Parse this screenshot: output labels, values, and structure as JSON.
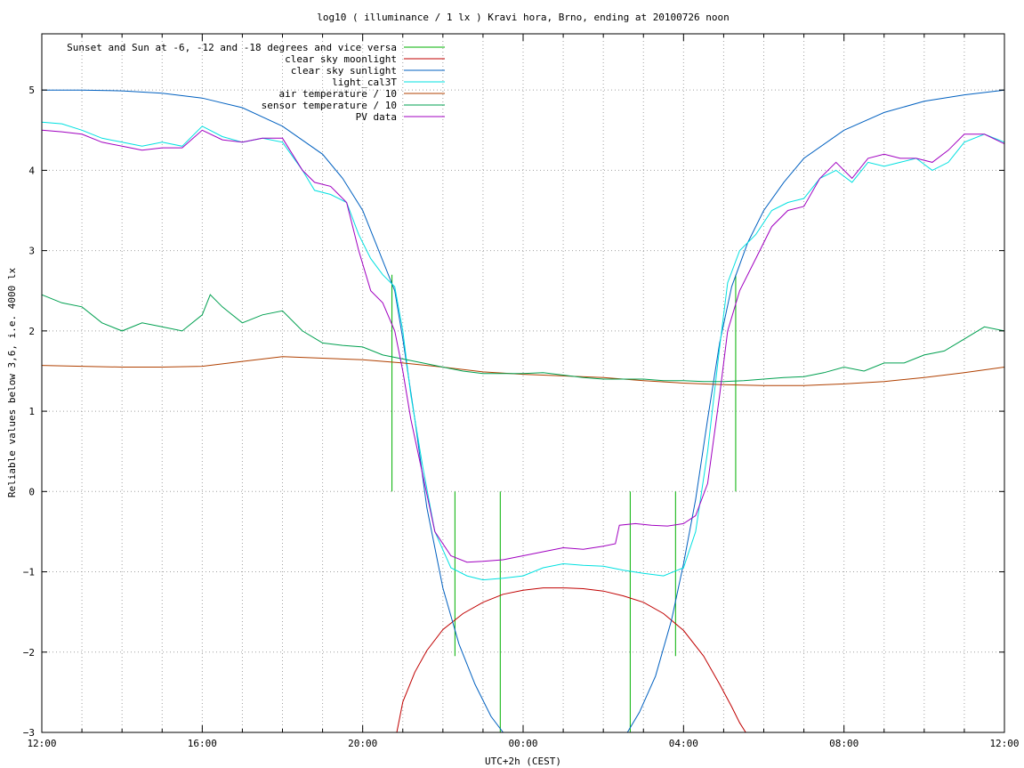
{
  "chart_data": {
    "type": "line",
    "title": "log10 ( illuminance / 1 lx ) Kravi hora, Brno, ending at 20100726 noon",
    "xlabel": "UTC+2h (CEST)",
    "ylabel": "Reliable values below 3,6, i.e. 4000 lx",
    "xlim": [
      12,
      36
    ],
    "ylim": [
      -3,
      5.7
    ],
    "x_ticks": [
      {
        "x": 12,
        "label": "12:00"
      },
      {
        "x": 16,
        "label": "16:00"
      },
      {
        "x": 20,
        "label": "20:00"
      },
      {
        "x": 24,
        "label": "00:00"
      },
      {
        "x": 28,
        "label": "04:00"
      },
      {
        "x": 32,
        "label": "08:00"
      },
      {
        "x": 36,
        "label": "12:00"
      }
    ],
    "y_ticks": [
      {
        "y": -3,
        "label": "−3"
      },
      {
        "y": -2,
        "label": "−2"
      },
      {
        "y": -1,
        "label": "−1"
      },
      {
        "y": 0,
        "label": "0"
      },
      {
        "y": 1,
        "label": "1"
      },
      {
        "y": 2,
        "label": "2"
      },
      {
        "y": 3,
        "label": "3"
      },
      {
        "y": 4,
        "label": "4"
      },
      {
        "y": 5,
        "label": "5"
      }
    ],
    "grid": true,
    "legend_position": "top-left",
    "series": [
      {
        "name": "Sunset and Sun at -6, -12 and -18 degrees and vice versa",
        "color": "#00b000",
        "style": "impulses",
        "impulses": [
          [
            20.73,
            2.7
          ],
          [
            22.3,
            -2.05
          ],
          [
            23.43,
            -3
          ],
          [
            26.67,
            -3
          ],
          [
            27.8,
            -2.05
          ],
          [
            29.3,
            2.7
          ]
        ]
      },
      {
        "name": "clear sky moonlight",
        "color": "#c00000",
        "x": [
          20.85,
          21.0,
          21.3,
          21.6,
          22.0,
          22.5,
          23.0,
          23.5,
          24.0,
          24.5,
          25.0,
          25.5,
          26.0,
          26.5,
          27.0,
          27.5,
          28.0,
          28.5,
          28.9,
          29.2,
          29.4,
          29.55
        ],
        "y": [
          -3.0,
          -2.62,
          -2.25,
          -1.98,
          -1.72,
          -1.52,
          -1.38,
          -1.28,
          -1.23,
          -1.2,
          -1.2,
          -1.21,
          -1.24,
          -1.3,
          -1.38,
          -1.52,
          -1.73,
          -2.05,
          -2.4,
          -2.68,
          -2.88,
          -3.0
        ]
      },
      {
        "name": "clear sky sunlight",
        "color": "#0060c0",
        "x": [
          12,
          13,
          14,
          15,
          16,
          17,
          18,
          19,
          19.5,
          20,
          20.4,
          20.8,
          21.0,
          21.3,
          21.6,
          22.0,
          22.4,
          22.8,
          23.2,
          23.5,
          26.6,
          26.9,
          27.3,
          27.7,
          28.0,
          28.3,
          28.6,
          28.9,
          29.2,
          29.6,
          30.0,
          30.5,
          31.0,
          32.0,
          33.0,
          34.0,
          35.0,
          36.0
        ],
        "y": [
          5.0,
          5.0,
          4.99,
          4.96,
          4.9,
          4.78,
          4.55,
          4.2,
          3.9,
          3.5,
          3.0,
          2.5,
          1.9,
          0.9,
          -0.2,
          -1.2,
          -1.9,
          -2.4,
          -2.8,
          -3.0,
          -3.0,
          -2.75,
          -2.3,
          -1.6,
          -0.9,
          -0.1,
          0.9,
          1.85,
          2.55,
          3.1,
          3.5,
          3.85,
          4.15,
          4.5,
          4.72,
          4.86,
          4.94,
          5.0
        ]
      },
      {
        "name": "light_cal3T",
        "color": "#00e0e0",
        "x": [
          12,
          12.5,
          13,
          13.5,
          14,
          14.5,
          15,
          15.5,
          16,
          16.5,
          17,
          17.5,
          18,
          18.5,
          18.8,
          19.2,
          19.6,
          19.9,
          20.2,
          20.5,
          20.8,
          21.0,
          21.2,
          21.5,
          21.8,
          22.2,
          22.6,
          23.0,
          23.5,
          24.0,
          24.5,
          25.0,
          25.5,
          26.0,
          26.5,
          27.0,
          27.5,
          28.0,
          28.3,
          28.6,
          28.9,
          29.1,
          29.4,
          29.8,
          30.2,
          30.6,
          31.0,
          31.4,
          31.8,
          32.2,
          32.6,
          33.0,
          33.4,
          33.8,
          34.2,
          34.6,
          35.0,
          35.5,
          36.0
        ],
        "y": [
          4.6,
          4.58,
          4.5,
          4.4,
          4.35,
          4.3,
          4.35,
          4.3,
          4.55,
          4.42,
          4.35,
          4.4,
          4.35,
          4.0,
          3.75,
          3.7,
          3.6,
          3.2,
          2.9,
          2.7,
          2.55,
          2.0,
          1.2,
          0.3,
          -0.5,
          -0.95,
          -1.05,
          -1.1,
          -1.08,
          -1.05,
          -0.95,
          -0.9,
          -0.92,
          -0.93,
          -0.98,
          -1.02,
          -1.05,
          -0.95,
          -0.5,
          0.5,
          1.8,
          2.6,
          3.0,
          3.2,
          3.5,
          3.6,
          3.65,
          3.9,
          4.0,
          3.85,
          4.1,
          4.05,
          4.1,
          4.15,
          4.0,
          4.1,
          4.35,
          4.45,
          4.35
        ]
      },
      {
        "name": "air temperature / 10",
        "color": "#b04000",
        "x": [
          12,
          13,
          14,
          15,
          16,
          17,
          18,
          19,
          20,
          21,
          22,
          23,
          24,
          25,
          26,
          27,
          28,
          29,
          30,
          31,
          32,
          33,
          34,
          35,
          36
        ],
        "y": [
          1.57,
          1.56,
          1.55,
          1.55,
          1.56,
          1.62,
          1.68,
          1.66,
          1.64,
          1.6,
          1.55,
          1.49,
          1.46,
          1.44,
          1.42,
          1.38,
          1.35,
          1.33,
          1.32,
          1.32,
          1.34,
          1.37,
          1.42,
          1.48,
          1.55
        ]
      },
      {
        "name": "sensor temperature / 10",
        "color": "#00a050",
        "x": [
          12,
          12.5,
          13,
          13.5,
          14,
          14.5,
          15,
          15.5,
          16,
          16.2,
          16.5,
          17,
          17.5,
          18,
          18.5,
          19,
          19.5,
          20,
          20.5,
          21,
          21.5,
          22,
          22.5,
          23,
          23.5,
          24,
          24.5,
          25,
          25.5,
          26,
          26.5,
          27,
          27.5,
          28,
          28.5,
          29,
          29.5,
          30,
          30.5,
          31,
          31.5,
          32,
          32.5,
          33,
          33.5,
          34,
          34.5,
          35,
          35.5,
          36
        ],
        "y": [
          2.45,
          2.35,
          2.3,
          2.1,
          2.0,
          2.1,
          2.05,
          2.0,
          2.2,
          2.45,
          2.3,
          2.1,
          2.2,
          2.25,
          2.0,
          1.85,
          1.82,
          1.8,
          1.7,
          1.65,
          1.6,
          1.55,
          1.5,
          1.47,
          1.47,
          1.47,
          1.48,
          1.45,
          1.42,
          1.4,
          1.4,
          1.4,
          1.38,
          1.38,
          1.37,
          1.37,
          1.38,
          1.4,
          1.42,
          1.43,
          1.48,
          1.55,
          1.5,
          1.6,
          1.6,
          1.7,
          1.75,
          1.9,
          2.05,
          2.0
        ]
      },
      {
        "name": "PV data",
        "color": "#a000c0",
        "x": [
          12,
          12.5,
          13,
          13.5,
          14,
          14.5,
          15,
          15.5,
          16,
          16.5,
          17,
          17.5,
          18,
          18.5,
          18.8,
          19.2,
          19.6,
          19.9,
          20.2,
          20.5,
          20.8,
          21.0,
          21.2,
          21.5,
          21.8,
          22.2,
          22.6,
          23.0,
          23.5,
          24.0,
          24.5,
          25.0,
          25.5,
          26.0,
          26.3,
          26.4,
          26.8,
          27.2,
          27.6,
          28.0,
          28.3,
          28.6,
          28.9,
          29.1,
          29.4,
          29.8,
          30.2,
          30.6,
          31.0,
          31.4,
          31.8,
          32.2,
          32.6,
          33.0,
          33.4,
          33.8,
          34.2,
          34.6,
          35.0,
          35.5,
          36.0
        ],
        "y": [
          4.5,
          4.48,
          4.45,
          4.35,
          4.3,
          4.25,
          4.28,
          4.28,
          4.5,
          4.38,
          4.35,
          4.4,
          4.4,
          4.0,
          3.85,
          3.8,
          3.6,
          3.0,
          2.5,
          2.35,
          2.0,
          1.5,
          0.9,
          0.2,
          -0.5,
          -0.8,
          -0.88,
          -0.87,
          -0.85,
          -0.8,
          -0.75,
          -0.7,
          -0.72,
          -0.68,
          -0.65,
          -0.42,
          -0.4,
          -0.42,
          -0.43,
          -0.4,
          -0.3,
          0.1,
          1.2,
          2.0,
          2.5,
          2.9,
          3.3,
          3.5,
          3.55,
          3.9,
          4.1,
          3.9,
          4.15,
          4.2,
          4.15,
          4.15,
          4.1,
          4.25,
          4.45,
          4.45,
          4.33
        ]
      }
    ]
  }
}
